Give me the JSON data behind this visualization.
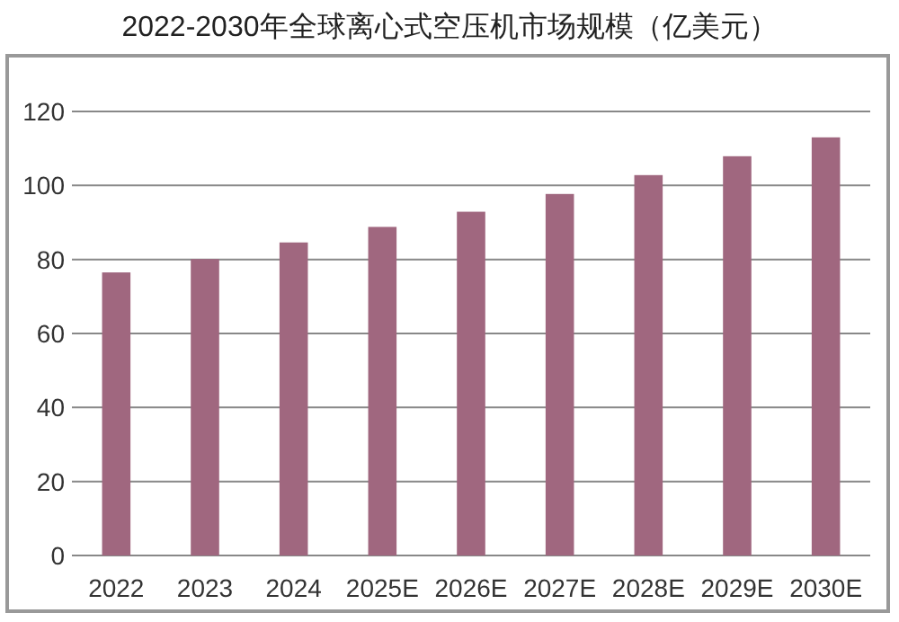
{
  "chart_data": {
    "type": "bar",
    "title": "2022-2030年全球离心式空压机市场规模（亿美元）",
    "categories": [
      "2022",
      "2023",
      "2024",
      "2025E",
      "2026E",
      "2027E",
      "2028E",
      "2029E",
      "2030E"
    ],
    "values": [
      76.5,
      80.1,
      84.6,
      88.8,
      92.9,
      97.7,
      102.8,
      107.9,
      113.0
    ],
    "color": "#a0677f",
    "ylim": [
      0,
      120
    ],
    "yticks": [
      0,
      20,
      40,
      60,
      80,
      100,
      120
    ],
    "grid": "y"
  }
}
